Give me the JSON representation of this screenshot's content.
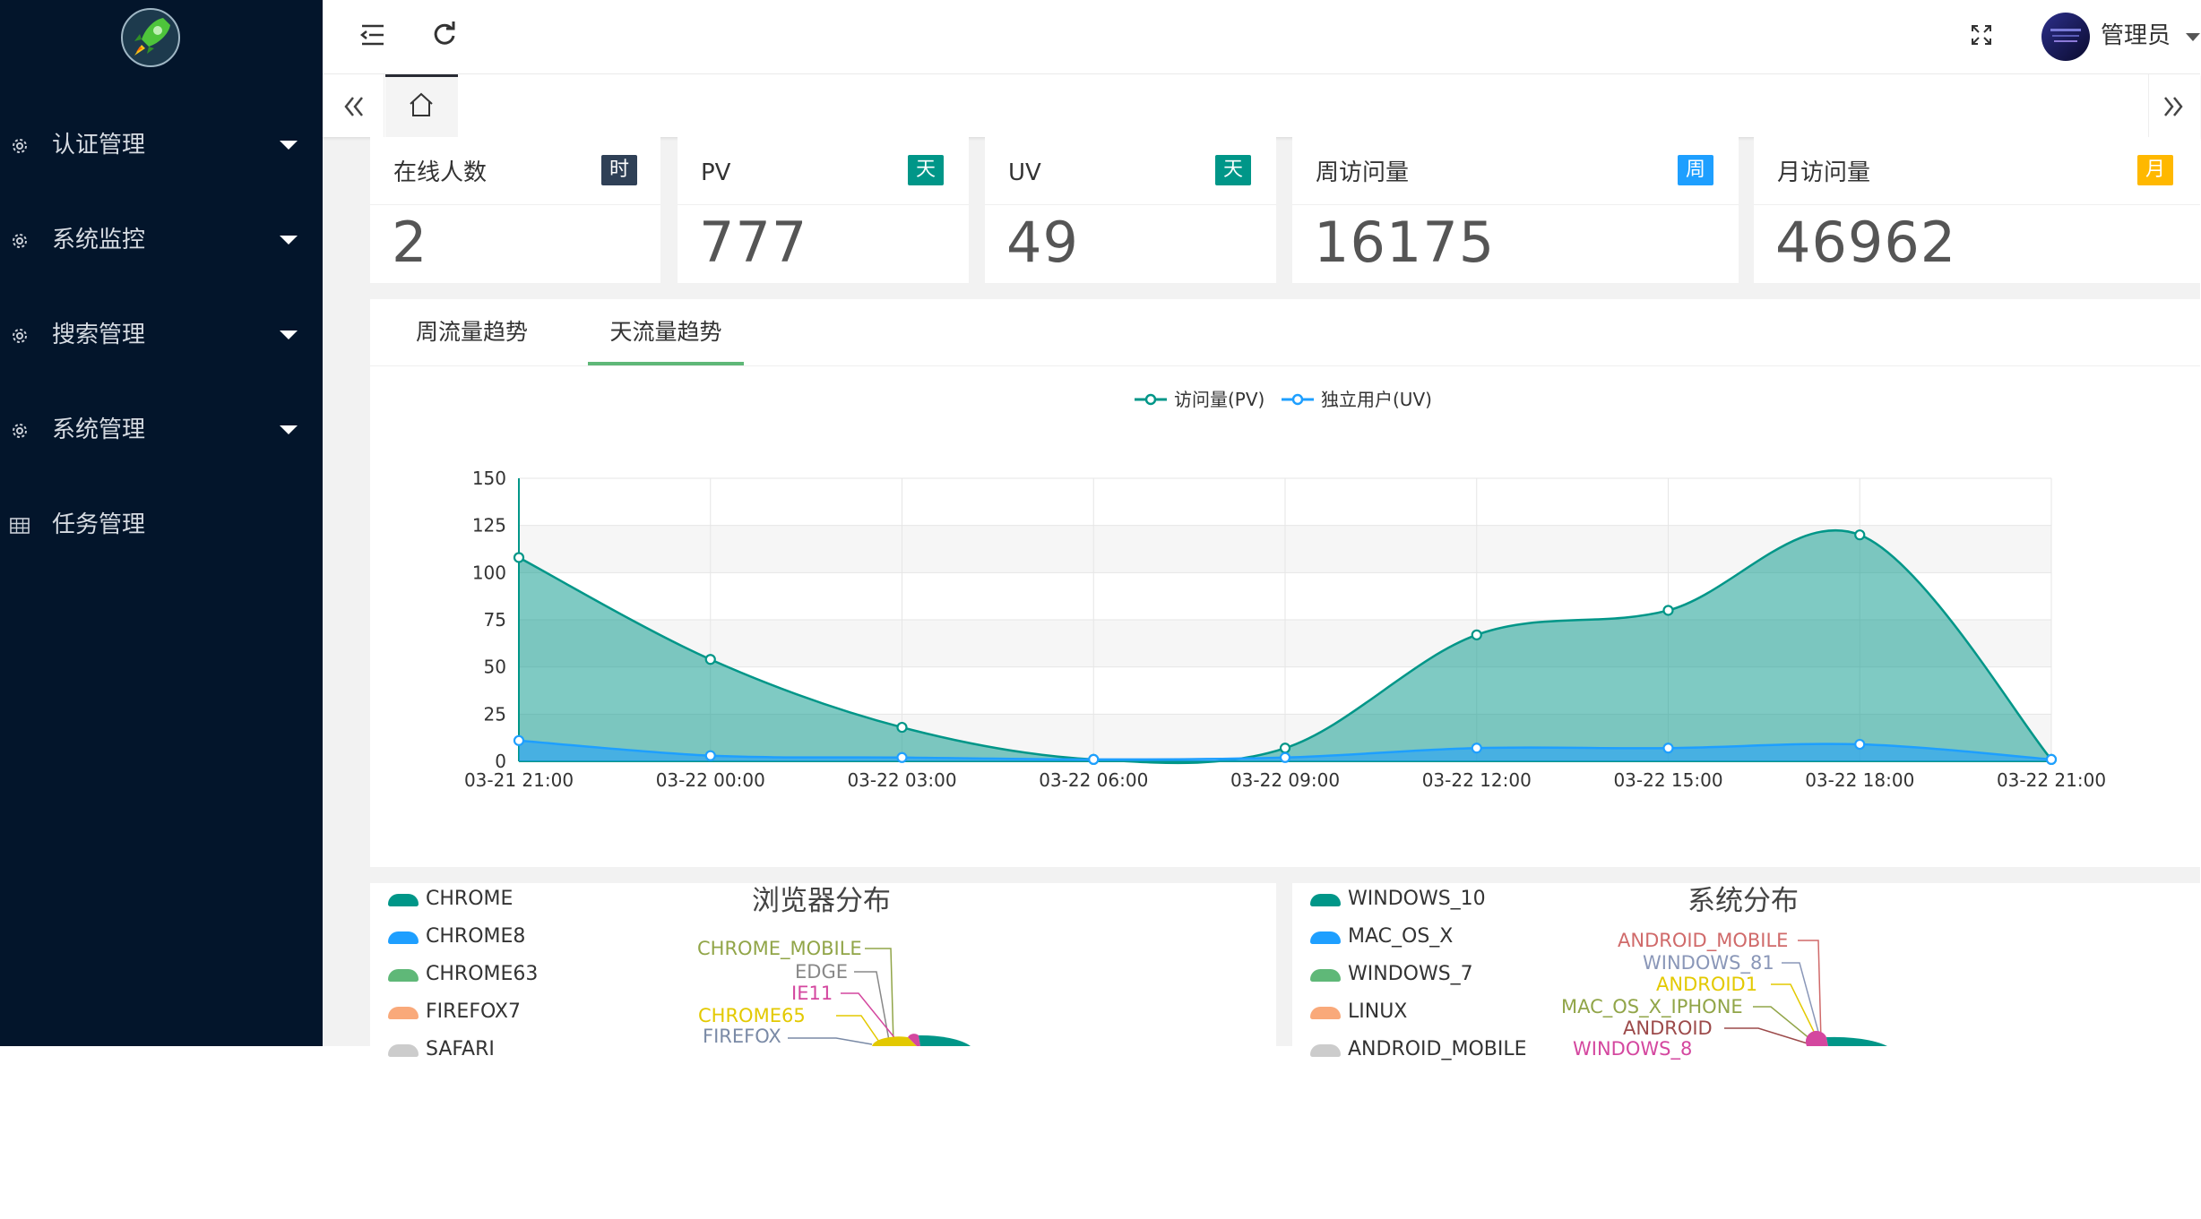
{
  "sidebar": {
    "items": [
      {
        "label": "认证管理",
        "icon": "gear-icon"
      },
      {
        "label": "系统监控",
        "icon": "gear-icon"
      },
      {
        "label": "搜索管理",
        "icon": "gear-icon"
      },
      {
        "label": "系统管理",
        "icon": "gear-icon"
      },
      {
        "label": "任务管理",
        "icon": "grid-icon"
      }
    ]
  },
  "header": {
    "user_name": "管理员"
  },
  "stats": [
    {
      "title": "在线人数",
      "badge": "时",
      "badge_color": "#2f4056",
      "value": "2"
    },
    {
      "title": "PV",
      "badge": "天",
      "badge_color": "#009688",
      "value": "777"
    },
    {
      "title": "UV",
      "badge": "天",
      "badge_color": "#009688",
      "value": "49"
    },
    {
      "title": "周访问量",
      "badge": "周",
      "badge_color": "#1e9fff",
      "value": "16175"
    },
    {
      "title": "月访问量",
      "badge": "月",
      "badge_color": "#ffb800",
      "value": "46962"
    }
  ],
  "chart_tabs": [
    {
      "label": "周流量趋势",
      "active": false
    },
    {
      "label": "天流量趋势",
      "active": true
    }
  ],
  "chart_data": {
    "type": "area",
    "x": [
      "03-21 21:00",
      "03-22 00:00",
      "03-22 03:00",
      "03-22 06:00",
      "03-22 09:00",
      "03-22 12:00",
      "03-22 15:00",
      "03-22 18:00",
      "03-22 21:00"
    ],
    "ylim": [
      0,
      150
    ],
    "yticks": [
      0,
      25,
      50,
      75,
      100,
      125,
      150
    ],
    "grid": true,
    "legend_position": "top-center",
    "series": [
      {
        "name": "访问量(PV)",
        "color": "#009688",
        "values": [
          108,
          54,
          18,
          1,
          7,
          67,
          80,
          120,
          1
        ]
      },
      {
        "name": "独立用户(UV)",
        "color": "#1e9fff",
        "values": [
          11,
          3,
          2,
          1,
          2,
          7,
          7,
          9,
          1
        ]
      }
    ]
  },
  "browser_panel": {
    "title": "浏览器分布",
    "legend": [
      {
        "label": "CHROME",
        "color": "#009688"
      },
      {
        "label": "CHROME8",
        "color": "#1e9fff"
      },
      {
        "label": "CHROME63",
        "color": "#5fb878"
      },
      {
        "label": "FIREFOX7",
        "color": "#f9a97a"
      },
      {
        "label": "SAFARI",
        "color": "#cccccc"
      }
    ],
    "labels": [
      {
        "label": "CHROME_MOBILE",
        "color": "#91a548"
      },
      {
        "label": "EDGE",
        "color": "#888888"
      },
      {
        "label": "IE11",
        "color": "#d4479f"
      },
      {
        "label": "CHROME65",
        "color": "#e3c900"
      },
      {
        "label": "FIREFOX",
        "color": "#7a8aa6"
      }
    ]
  },
  "os_panel": {
    "title": "系统分布",
    "legend": [
      {
        "label": "WINDOWS_10",
        "color": "#009688"
      },
      {
        "label": "MAC_OS_X",
        "color": "#1e9fff"
      },
      {
        "label": "WINDOWS_7",
        "color": "#5fb878"
      },
      {
        "label": "LINUX",
        "color": "#f9a97a"
      },
      {
        "label": "ANDROID_MOBILE",
        "color": "#cccccc"
      }
    ],
    "labels": [
      {
        "label": "ANDROID_MOBILE",
        "color": "#d06a6a"
      },
      {
        "label": "WINDOWS_81",
        "color": "#8a97b8"
      },
      {
        "label": "ANDROID1",
        "color": "#e3c900"
      },
      {
        "label": "MAC_OS_X_IPHONE",
        "color": "#91a548"
      },
      {
        "label": "ANDROID",
        "color": "#9c4a4a"
      },
      {
        "label": "WINDOWS_8",
        "color": "#d4479f"
      }
    ]
  }
}
